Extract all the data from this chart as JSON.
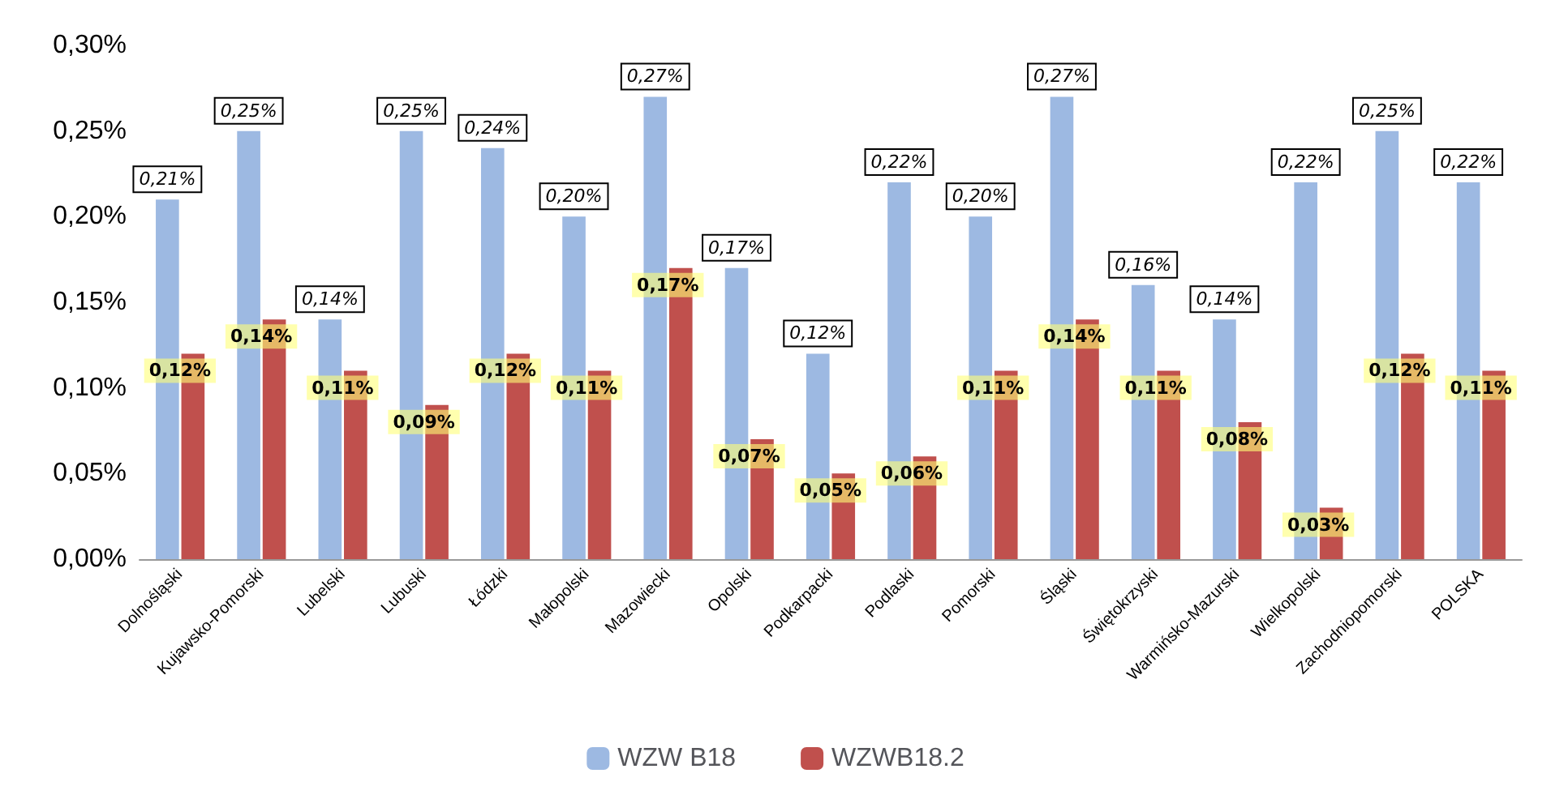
{
  "chart_data": {
    "type": "bar",
    "categories": [
      "Dolnośląski",
      "Kujawsko-Pomorski",
      "Lubelski",
      "Lubuski",
      "Łódzki",
      "Małopolski",
      "Mazowiecki",
      "Opolski",
      "Podkarpacki",
      "Podlaski",
      "Pomorski",
      "Śląski",
      "Świętokrzyski",
      "Warmińsko-Mazurski",
      "Wielkopolski",
      "Zachodniopomorski",
      "POLSKA"
    ],
    "series": [
      {
        "name": "WZW B18",
        "color": "#9db9e2",
        "values": [
          0.21,
          0.25,
          0.14,
          0.25,
          0.24,
          0.2,
          0.27,
          0.17,
          0.12,
          0.22,
          0.2,
          0.27,
          0.16,
          0.14,
          0.22,
          0.25,
          0.22
        ],
        "value_labels": [
          "0,21%",
          "0,25%",
          "0,14%",
          "0,25%",
          "0,24%",
          "0,20%",
          "0,27%",
          "0,17%",
          "0,12%",
          "0,22%",
          "0,20%",
          "0,27%",
          "0,16%",
          "0,14%",
          "0,22%",
          "0,25%",
          "0,22%"
        ]
      },
      {
        "name": "WZWB18.2",
        "color": "#c0504d",
        "values": [
          0.12,
          0.14,
          0.11,
          0.09,
          0.12,
          0.11,
          0.17,
          0.07,
          0.05,
          0.06,
          0.11,
          0.14,
          0.11,
          0.08,
          0.03,
          0.12,
          0.11
        ],
        "value_labels": [
          "0,12%",
          "0,14%",
          "0,11%",
          "0,09%",
          "0,12%",
          "0,11%",
          "0,17%",
          "0,07%",
          "0,05%",
          "0,06%",
          "0,11%",
          "0,14%",
          "0,11%",
          "0,08%",
          "0,03%",
          "0,12%",
          "0,11%"
        ]
      }
    ],
    "ylim": [
      0,
      0.3
    ],
    "yticks": [
      {
        "value": 0,
        "label": "0,00%"
      },
      {
        "value": 0.05,
        "label": "0,05%"
      },
      {
        "value": 0.1,
        "label": "0,10%"
      },
      {
        "value": 0.15,
        "label": "0,15%"
      },
      {
        "value": 0.2,
        "label": "0,20%"
      },
      {
        "value": 0.25,
        "label": "0,25%"
      },
      {
        "value": 0.3,
        "label": "0,30%"
      }
    ],
    "grid": false,
    "legend": "bottom"
  }
}
